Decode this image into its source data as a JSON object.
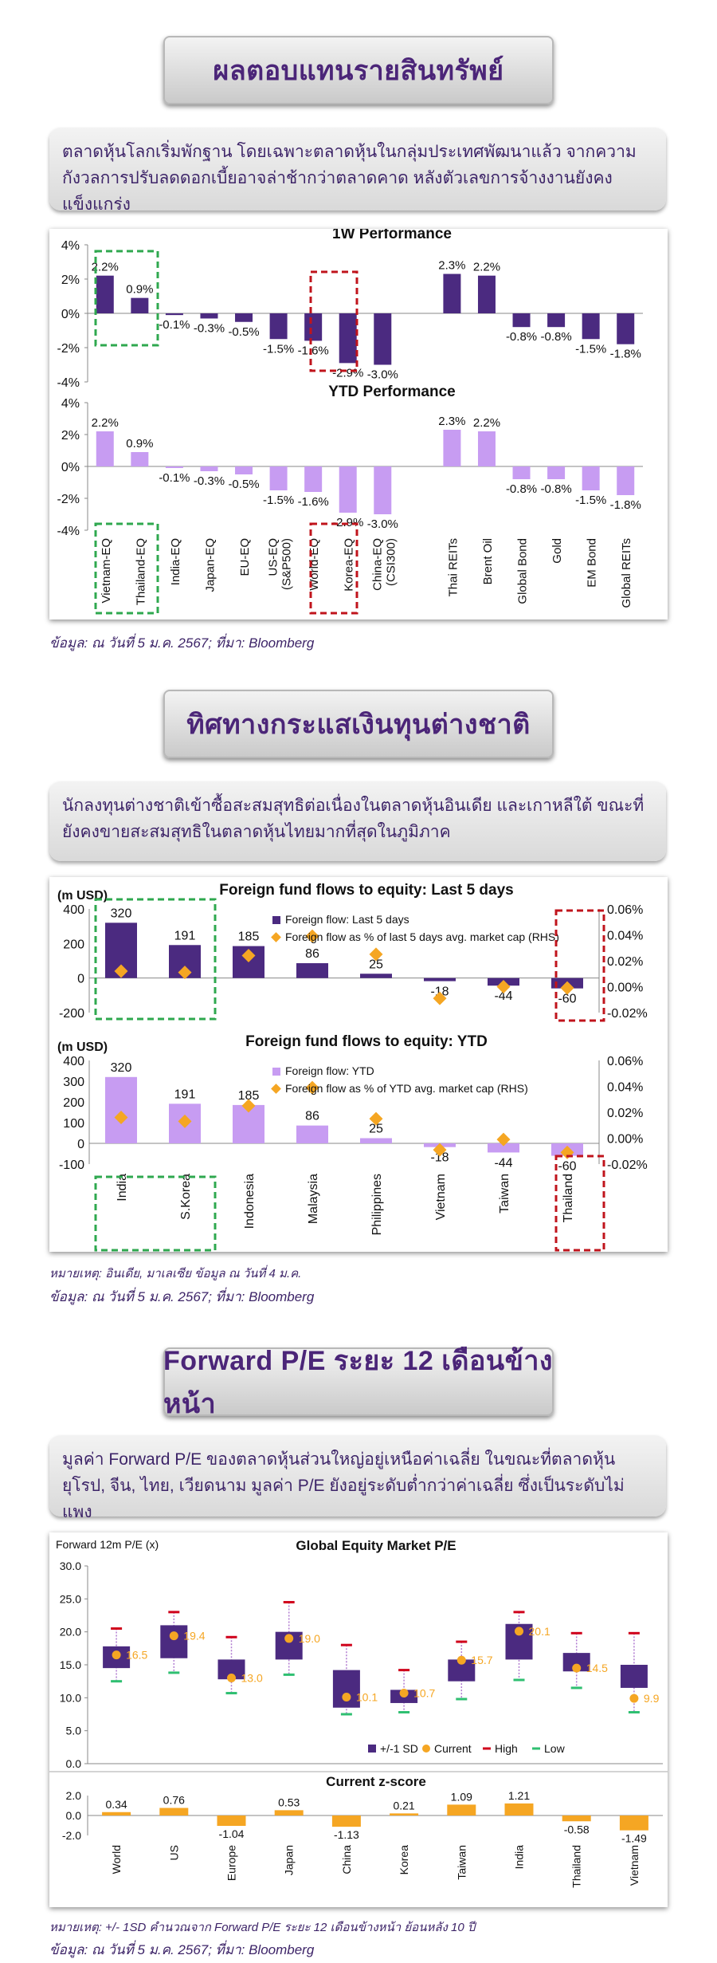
{
  "s1": {
    "title": "ผลตอบแทนรายสินทรัพย์",
    "desc": "ตลาดหุ้นโลกเริ่มพักฐาน โดยเฉพาะตลาดหุ้นในกลุ่มประเทศพัฒนาแล้ว จากความกังวลการปรับลดดอกเบี้ยอาจล่าช้ากว่าตลาดคาด หลังตัวเลขการจ้างงานยังคงแข็งแกร่ง",
    "source": "ข้อมูล: ณ วันที่ 5 ม.ค. 2567; ที่มา: Bloomberg"
  },
  "chart_1w": {
    "type": "bar",
    "title": "1W Performance",
    "categories": [
      "Vietnam-EQ",
      "Thailand-EQ",
      "India-EQ",
      "Japan-EQ",
      "EU-EQ",
      "US-EQ (S&P500)",
      "World-EQ",
      "Korea-EQ",
      "China-EQ (CSI300)",
      "Thai REITs",
      "Brent Oil",
      "Global Bond",
      "Gold",
      "EM Bond",
      "Global REITs"
    ],
    "values": [
      2.2,
      0.9,
      -0.1,
      -0.3,
      -0.5,
      -1.5,
      -1.6,
      -2.9,
      -3.0,
      2.3,
      2.2,
      -0.8,
      -0.8,
      -1.5,
      -1.8
    ],
    "labels": [
      "2.2%",
      "0.9%",
      "-0.1%",
      "-0.3%",
      "-0.5%",
      "-1.5%",
      "-1.6%",
      "-2.9%",
      "-3.0%",
      "2.3%",
      "2.2%",
      "-0.8%",
      "-0.8%",
      "-1.5%",
      "-1.8%"
    ],
    "yticks": [
      "4%",
      "2%",
      "0%",
      "-2%",
      "-4%"
    ],
    "ylim": [
      -4,
      4
    ],
    "color": "#4b2a80"
  },
  "chart_ytd": {
    "type": "bar",
    "title": "YTD Performance",
    "values": [
      2.2,
      0.9,
      -0.1,
      -0.3,
      -0.5,
      -1.5,
      -1.6,
      -2.9,
      -3.0,
      2.3,
      2.2,
      -0.8,
      -0.8,
      -1.5,
      -1.8
    ],
    "labels": [
      "2.2%",
      "0.9%",
      "-0.1%",
      "-0.3%",
      "-0.5%",
      "-1.5%",
      "-1.6%",
      "-2.9%",
      "-3.0%",
      "2.3%",
      "2.2%",
      "-0.8%",
      "-0.8%",
      "-1.5%",
      "-1.8%"
    ],
    "yticks": [
      "4%",
      "2%",
      "0%",
      "-2%",
      "-4%"
    ],
    "ylim": [
      -4,
      4
    ],
    "color": "#c79cf2"
  },
  "s2": {
    "title": "ทิศทางกระแสเงินทุนต่างชาติ",
    "desc": "นักลงทุนต่างชาติเข้าซื้อสะสมสุทธิต่อเนื่องในตลาดหุ้นอินเดีย และเกาหลีใต้ ขณะที่ยังคงขายสะสมสุทธิในตลาดหุ้นไทยมากที่สุดในภูมิภาค",
    "note": "หมายเหตุ: อินเดีย, มาเลเซีย ข้อมูล ณ วันที่ 4 ม.ค.",
    "source": "ข้อมูล: ณ วันที่ 5 ม.ค. 2567; ที่มา: Bloomberg"
  },
  "chart_ff5": {
    "type": "bar",
    "title": "Foreign fund flows to equity: Last 5 days",
    "unit": "(m USD)",
    "categories": [
      "India",
      "S.Korea",
      "Indonesia",
      "Malaysia",
      "Philippines",
      "Vietnam",
      "Taiwan",
      "Thailand"
    ],
    "values": [
      320,
      191,
      185,
      86,
      25,
      -18,
      -44,
      -60
    ],
    "labels": [
      "320",
      "191",
      "185",
      "86",
      "25",
      "-18",
      "-44",
      "-60"
    ],
    "pct": [
      0.012,
      0.011,
      0.024,
      0.039,
      0.025,
      -0.009,
      0.0,
      -0.001
    ],
    "yticks": [
      "400",
      "200",
      "0",
      "-200"
    ],
    "ylim": [
      -200,
      400
    ],
    "y2ticks": [
      "0.06%",
      "0.04%",
      "0.02%",
      "0.00%",
      "-0.02%"
    ],
    "y2lim": [
      -0.02,
      0.06
    ],
    "legend_bar": "Foreign flow: Last 5 days",
    "legend_dot": "Foreign flow as % of last 5 days avg. market cap (RHS)",
    "color": "#4b2a80",
    "dot_color": "#f5a623"
  },
  "chart_ffytd": {
    "type": "bar",
    "title": "Foreign fund flows to equity: YTD",
    "unit": "(m USD)",
    "categories": [
      "India",
      "S.Korea",
      "Indonesia",
      "Malaysia",
      "Philippines",
      "Vietnam",
      "Taiwan",
      "Thailand"
    ],
    "values": [
      320,
      191,
      185,
      86,
      25,
      -18,
      -44,
      -60
    ],
    "labels": [
      "320",
      "191",
      "185",
      "86",
      "25",
      "-18",
      "-44",
      "-60"
    ],
    "pct": [
      0.016,
      0.013,
      0.025,
      0.039,
      0.015,
      -0.009,
      -0.001,
      -0.011
    ],
    "yticks": [
      "400",
      "300",
      "200",
      "100",
      "0",
      "-100"
    ],
    "ylim": [
      -100,
      400
    ],
    "y2ticks": [
      "0.06%",
      "0.04%",
      "0.02%",
      "0.00%",
      "-0.02%"
    ],
    "y2lim": [
      -0.02,
      0.06
    ],
    "legend_bar": "Foreign flow: YTD",
    "legend_dot": "Foreign flow as % of YTD avg. market cap (RHS)",
    "color": "#c79cf2",
    "dot_color": "#f5a623"
  },
  "s3": {
    "title": "Forward P/E ระยะ 12 เดือนข้างหน้า",
    "desc": "มูลค่า Forward P/E ของตลาดหุ้นส่วนใหญ่อยู่เหนือค่าเฉลี่ย ในขณะที่ตลาดหุ้นยุโรป, จีน, ไทย, เวียดนาม มูลค่า P/E ยังอยู่ระดับต่ำกว่าค่าเฉลี่ย ซึ่งเป็นระดับไม่แพง",
    "note": "หมายเหตุ: +/- 1SD คำนวณจาก Forward P/E ระยะ 12 เดือนข้างหน้า ย้อนหลัง 10 ปี",
    "source": "ข้อมูล: ณ วันที่ 5 ม.ค. 2567; ที่มา: Bloomberg"
  },
  "chart_pe": {
    "type": "box",
    "title": "Global Equity Market P/E",
    "ylabel": "Forward 12m P/E (x)",
    "categories": [
      "World",
      "US",
      "Europe",
      "Japan",
      "China",
      "Korea",
      "Taiwan",
      "India",
      "Thailand",
      "Vietnam"
    ],
    "sd_low": [
      14.5,
      16.0,
      12.8,
      15.8,
      8.5,
      9.2,
      12.5,
      15.8,
      14.0,
      11.5
    ],
    "sd_high": [
      17.8,
      21.0,
      15.8,
      20.0,
      14.2,
      11.2,
      15.8,
      21.2,
      16.8,
      15.0
    ],
    "current": [
      16.5,
      19.4,
      13.0,
      19.0,
      10.1,
      10.7,
      15.7,
      20.1,
      14.5,
      9.9
    ],
    "current_labels": [
      "16.5",
      "19.4",
      "13.0",
      "19.0",
      "10.1",
      "10.7",
      "15.7",
      "20.1",
      "14.5",
      "9.9"
    ],
    "high": [
      20.5,
      23.0,
      19.2,
      24.5,
      18.0,
      14.2,
      18.5,
      23.0,
      19.8,
      19.8
    ],
    "low": [
      12.5,
      13.8,
      10.7,
      13.5,
      7.5,
      7.8,
      9.8,
      12.7,
      11.5,
      7.8
    ],
    "yticks": [
      "30.0",
      "25.0",
      "20.0",
      "15.0",
      "10.0",
      "5.0",
      "0.0"
    ],
    "ylim": [
      0,
      30
    ],
    "legend": [
      "+/-1 SD",
      "Current",
      "High",
      "Low"
    ],
    "colors": {
      "box": "#4b2a80",
      "current": "#f5a623",
      "high": "#d0021b",
      "low": "#2fbf71"
    }
  },
  "chart_z": {
    "type": "bar",
    "title": "Current z-score",
    "values": [
      0.34,
      0.76,
      -1.04,
      0.53,
      -1.13,
      0.21,
      1.09,
      1.21,
      -0.58,
      -1.49
    ],
    "labels": [
      "0.34",
      "0.76",
      "-1.04",
      "0.53",
      "-1.13",
      "0.21",
      "1.09",
      "1.21",
      "-0.58",
      "-1.49"
    ],
    "yticks": [
      "2.0",
      "0.0",
      "-2.0"
    ],
    "ylim": [
      -2,
      2
    ],
    "color": "#f5a623"
  }
}
